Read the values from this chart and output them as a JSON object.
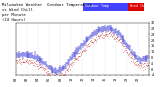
{
  "title_line1": "Milwaukee Weather  Outdoor Temperature",
  "title_line2": "vs Wind Chill",
  "title_line3": "per Minute",
  "title_line4": "(24 Hours)",
  "bg_color": "#ffffff",
  "plot_bg": "#ffffff",
  "temp_color": "#0000cc",
  "windchill_color": "#cc0000",
  "legend_blue": "#4444ff",
  "legend_red": "#dd0000",
  "n_minutes": 1440,
  "y_min": -4,
  "y_max": 32,
  "title_fontsize": 3.0,
  "tick_fontsize": 2.5,
  "seed": 42
}
